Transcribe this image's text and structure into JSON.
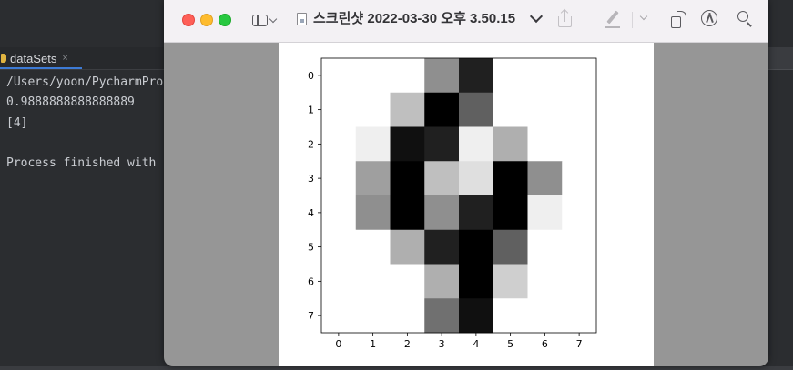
{
  "terminal": {
    "tab_label": "dataSets",
    "tab_close": "×",
    "lines": [
      "/Users/yoon/PycharmPro",
      "0.9888888888888889",
      "[4]",
      "",
      "Process finished with "
    ]
  },
  "preview": {
    "title": "스크린샷 2022-03-30 오후 3.50.15",
    "icons": [
      "sidebar-icon",
      "document-icon",
      "share-icon",
      "markup-icon",
      "rotate-icon",
      "annotate-icon",
      "search-icon"
    ],
    "colors": {
      "close": "#fe5f57",
      "minimize": "#febc2e",
      "maximize": "#28c840"
    }
  },
  "chart_data": {
    "type": "heatmap",
    "colormap": "gray_r",
    "vmin": 0,
    "vmax": 16,
    "x_ticks": [
      "0",
      "1",
      "2",
      "3",
      "4",
      "5",
      "6",
      "7"
    ],
    "y_ticks": [
      "0",
      "1",
      "2",
      "3",
      "4",
      "5",
      "6",
      "7"
    ],
    "values": [
      [
        0,
        0,
        0,
        7,
        14,
        0,
        0,
        0
      ],
      [
        0,
        0,
        4,
        16,
        10,
        0,
        0,
        0
      ],
      [
        0,
        1,
        15,
        14,
        1,
        5,
        0,
        0
      ],
      [
        0,
        6,
        16,
        4,
        2,
        16,
        7,
        0
      ],
      [
        0,
        7,
        16,
        7,
        14,
        16,
        1,
        0
      ],
      [
        0,
        0,
        5,
        14,
        16,
        10,
        0,
        0
      ],
      [
        0,
        0,
        0,
        5,
        16,
        3,
        0,
        0
      ],
      [
        0,
        0,
        0,
        9,
        15,
        0,
        0,
        0
      ]
    ]
  }
}
